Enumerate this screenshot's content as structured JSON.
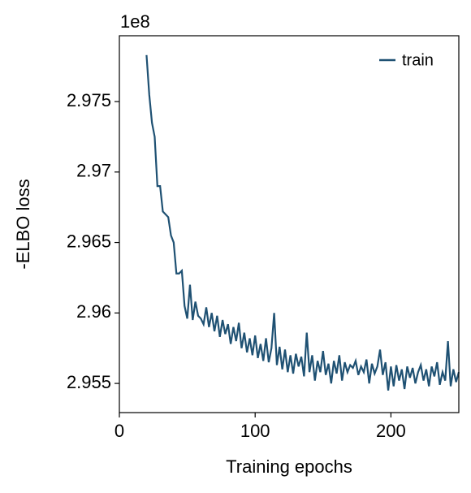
{
  "chart_data": {
    "type": "line",
    "xlabel": "Training epochs",
    "ylabel": "-ELBO loss",
    "y_offset_label": "1e8",
    "legend": "upper right",
    "x": [
      20,
      22,
      24,
      26,
      28,
      30,
      32,
      34,
      36,
      38,
      40,
      42,
      44,
      46,
      48,
      50,
      52,
      54,
      56,
      58,
      60,
      62,
      64,
      66,
      68,
      70,
      72,
      74,
      76,
      78,
      80,
      82,
      84,
      86,
      88,
      90,
      92,
      94,
      96,
      98,
      100,
      102,
      104,
      106,
      108,
      110,
      112,
      114,
      116,
      118,
      120,
      122,
      124,
      126,
      128,
      130,
      132,
      134,
      136,
      138,
      140,
      142,
      144,
      146,
      148,
      150,
      152,
      154,
      156,
      158,
      160,
      162,
      164,
      166,
      168,
      170,
      172,
      174,
      176,
      178,
      180,
      182,
      184,
      186,
      188,
      190,
      192,
      194,
      196,
      198,
      200,
      202,
      204,
      206,
      208,
      210,
      212,
      214,
      216,
      218,
      220,
      222,
      224,
      226,
      228,
      230,
      232,
      234,
      236,
      238,
      240,
      242,
      244,
      246,
      248,
      250
    ],
    "series": [
      {
        "name": "train",
        "color": "#1f5173",
        "values": [
          2.9783,
          2.9755,
          2.9735,
          2.9725,
          2.969,
          2.969,
          2.9672,
          2.967,
          2.9668,
          2.9655,
          2.965,
          2.9628,
          2.9628,
          2.963,
          2.9605,
          2.9596,
          2.962,
          2.9595,
          2.9608,
          2.9598,
          2.9596,
          2.9592,
          2.9604,
          2.959,
          2.96,
          2.9587,
          2.9598,
          2.9583,
          2.9595,
          2.9585,
          2.9592,
          2.9578,
          2.959,
          2.958,
          2.9593,
          2.9575,
          2.9586,
          2.9572,
          2.9582,
          2.957,
          2.9584,
          2.9568,
          2.9578,
          2.9566,
          2.9582,
          2.9565,
          2.9575,
          2.96,
          2.9563,
          2.9576,
          2.956,
          2.9574,
          2.9558,
          2.957,
          2.9557,
          2.9571,
          2.9562,
          2.9569,
          2.9555,
          2.9586,
          2.9558,
          2.957,
          2.9552,
          2.9566,
          2.9558,
          2.9573,
          2.9556,
          2.9564,
          2.955,
          2.9566,
          2.9557,
          2.957,
          2.9552,
          2.9565,
          2.9558,
          2.9563,
          2.9561,
          2.9566,
          2.9556,
          2.9562,
          2.9558,
          2.9567,
          2.955,
          2.9564,
          2.9557,
          2.9562,
          2.9574,
          2.9556,
          2.9565,
          2.9545,
          2.9562,
          2.9548,
          2.9563,
          2.9552,
          2.956,
          2.9546,
          2.9562,
          2.9554,
          2.9561,
          2.955,
          2.9558,
          2.9563,
          2.9552,
          2.956,
          2.9548,
          2.9562,
          2.9555,
          2.9565,
          2.9549,
          2.9558,
          2.9552,
          2.958,
          2.9548,
          2.956,
          2.9551,
          2.9558
        ]
      }
    ],
    "xlim": [
      0,
      250
    ],
    "xticks": [
      0,
      100,
      200
    ],
    "ylim": [
      2.95293,
      2.97967
    ],
    "yticks": [
      2.955,
      2.96,
      2.965,
      2.97,
      2.975
    ]
  }
}
